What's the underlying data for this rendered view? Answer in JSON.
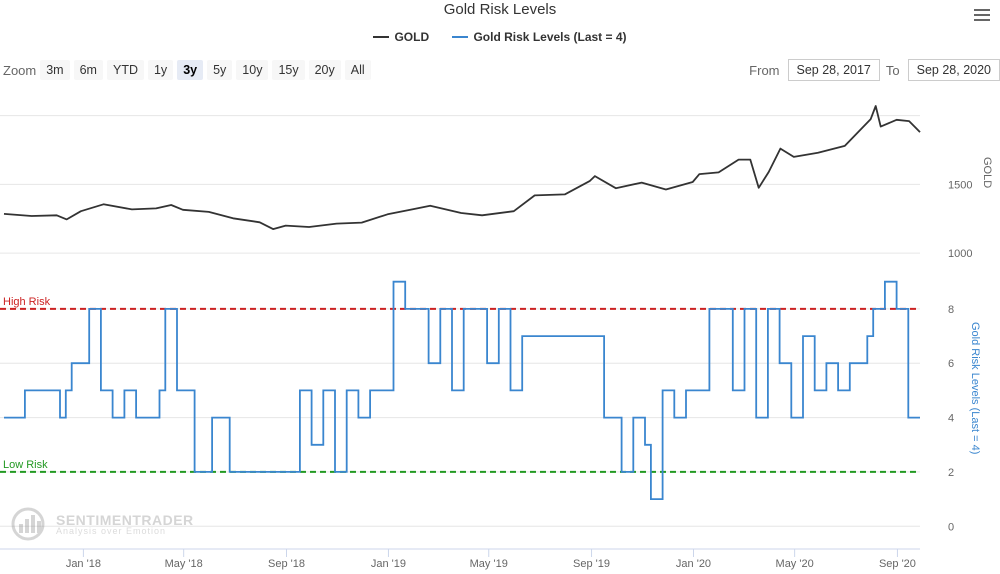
{
  "title": "Gold Risk Levels",
  "legend": [
    {
      "label": "GOLD",
      "color": "#333333"
    },
    {
      "label": "Gold Risk Levels (Last = 4)",
      "color": "#3a86cf"
    }
  ],
  "zoom": {
    "label": "Zoom",
    "buttons": [
      "3m",
      "6m",
      "YTD",
      "1y",
      "3y",
      "5y",
      "10y",
      "15y",
      "20y",
      "All"
    ],
    "active": "3y"
  },
  "range": {
    "from_label": "From",
    "from_value": "Sep 28, 2017",
    "to_label": "To",
    "to_value": "Sep 28, 2020"
  },
  "watermark": {
    "name": "SENTIMENTRADER",
    "tagline": "Analysis over Emotion"
  },
  "colors": {
    "gold": "#333333",
    "risk": "#3a86cf",
    "high": "#cc2222",
    "low": "#229922"
  },
  "chart_data": [
    {
      "type": "line",
      "series": [
        {
          "name": "GOLD",
          "x": [
            "2017-09-28",
            "2017-10-31",
            "2017-11-30",
            "2017-12-12",
            "2017-12-29",
            "2018-01-25",
            "2018-02-28",
            "2018-03-29",
            "2018-04-16",
            "2018-04-30",
            "2018-05-31",
            "2018-06-29",
            "2018-07-31",
            "2018-08-16",
            "2018-08-31",
            "2018-09-28",
            "2018-10-31",
            "2018-11-30",
            "2018-12-31",
            "2019-01-31",
            "2019-02-20",
            "2019-03-29",
            "2019-04-23",
            "2019-05-31",
            "2019-06-25",
            "2019-07-31",
            "2019-08-30",
            "2019-09-05",
            "2019-09-30",
            "2019-10-31",
            "2019-11-29",
            "2019-12-31",
            "2020-01-08",
            "2020-01-31",
            "2020-02-24",
            "2020-03-09",
            "2020-03-19",
            "2020-03-31",
            "2020-04-14",
            "2020-04-30",
            "2020-05-29",
            "2020-06-30",
            "2020-07-31",
            "2020-08-06",
            "2020-08-12",
            "2020-08-31",
            "2020-09-15",
            "2020-09-28"
          ],
          "y": [
            1285,
            1270,
            1275,
            1245,
            1305,
            1355,
            1318,
            1325,
            1350,
            1315,
            1300,
            1253,
            1224,
            1175,
            1200,
            1190,
            1215,
            1222,
            1282,
            1320,
            1345,
            1292,
            1275,
            1305,
            1420,
            1427,
            1525,
            1560,
            1472,
            1513,
            1463,
            1517,
            1575,
            1587,
            1680,
            1680,
            1475,
            1590,
            1760,
            1700,
            1730,
            1780,
            1975,
            2070,
            1920,
            1970,
            1960,
            1880
          ]
        }
      ],
      "ylabel": "GOLD",
      "yticks": [
        1000,
        1500
      ],
      "ylim": [
        950,
        2150
      ]
    },
    {
      "type": "line",
      "series": [
        {
          "name": "Gold Risk Levels (Last = 4)",
          "x": [
            "2017-09-28",
            "2017-10-23",
            "2017-11-20",
            "2017-12-04",
            "2017-12-11",
            "2017-12-18",
            "2018-01-08",
            "2018-01-22",
            "2018-02-05",
            "2018-02-19",
            "2018-03-05",
            "2018-04-02",
            "2018-04-09",
            "2018-04-23",
            "2018-05-14",
            "2018-06-04",
            "2018-06-25",
            "2018-08-20",
            "2018-09-03",
            "2018-09-17",
            "2018-10-01",
            "2018-10-15",
            "2018-10-29",
            "2018-11-12",
            "2018-11-26",
            "2018-12-10",
            "2018-12-24",
            "2019-01-07",
            "2019-01-21",
            "2019-02-04",
            "2019-02-18",
            "2019-03-04",
            "2019-03-18",
            "2019-04-01",
            "2019-04-15",
            "2019-04-29",
            "2019-05-13",
            "2019-05-27",
            "2019-06-10",
            "2019-06-24",
            "2019-07-08",
            "2019-09-02",
            "2019-09-16",
            "2019-10-07",
            "2019-10-21",
            "2019-11-04",
            "2019-11-11",
            "2019-11-25",
            "2019-12-09",
            "2019-12-23",
            "2020-01-06",
            "2020-01-20",
            "2020-02-03",
            "2020-02-17",
            "2020-03-02",
            "2020-03-16",
            "2020-03-30",
            "2020-04-13",
            "2020-04-27",
            "2020-05-11",
            "2020-05-25",
            "2020-06-08",
            "2020-06-22",
            "2020-07-06",
            "2020-07-27",
            "2020-08-03",
            "2020-08-17",
            "2020-08-31",
            "2020-09-14",
            "2020-09-28"
          ],
          "y": [
            4,
            5,
            5,
            4,
            5,
            6,
            8,
            5,
            4,
            5,
            4,
            5,
            8,
            5,
            2,
            4,
            2,
            2,
            2,
            5,
            3,
            5,
            2,
            5,
            4,
            5,
            5,
            9,
            8,
            8,
            6,
            8,
            5,
            8,
            8,
            6,
            8,
            5,
            7,
            7,
            7,
            7,
            4,
            2,
            4,
            3,
            1,
            5,
            4,
            5,
            5,
            8,
            8,
            5,
            8,
            4,
            8,
            6,
            4,
            7,
            5,
            6,
            5,
            6,
            7,
            8,
            9,
            8,
            4,
            4
          ]
        }
      ],
      "ylabel": "Gold Risk Levels (Last = 4)",
      "yticks": [
        0,
        2,
        4,
        6,
        8
      ],
      "ylim": [
        -0.8,
        9.8
      ],
      "annotations": [
        {
          "label": "High Risk",
          "y": 8,
          "style": "dashed"
        },
        {
          "label": "Low Risk",
          "y": 2,
          "style": "dashed"
        }
      ]
    }
  ],
  "xaxis": {
    "ticks": [
      {
        "label": "Jan '18",
        "date": "2018-01-01"
      },
      {
        "label": "May '18",
        "date": "2018-05-01"
      },
      {
        "label": "Sep '18",
        "date": "2018-09-01"
      },
      {
        "label": "Jan '19",
        "date": "2019-01-01"
      },
      {
        "label": "May '19",
        "date": "2019-05-01"
      },
      {
        "label": "Sep '19",
        "date": "2019-09-01"
      },
      {
        "label": "Jan '20",
        "date": "2020-01-01"
      },
      {
        "label": "May '20",
        "date": "2020-05-01"
      },
      {
        "label": "Sep '20",
        "date": "2020-09-01"
      }
    ],
    "range": [
      "2017-09-28",
      "2020-09-28"
    ]
  }
}
